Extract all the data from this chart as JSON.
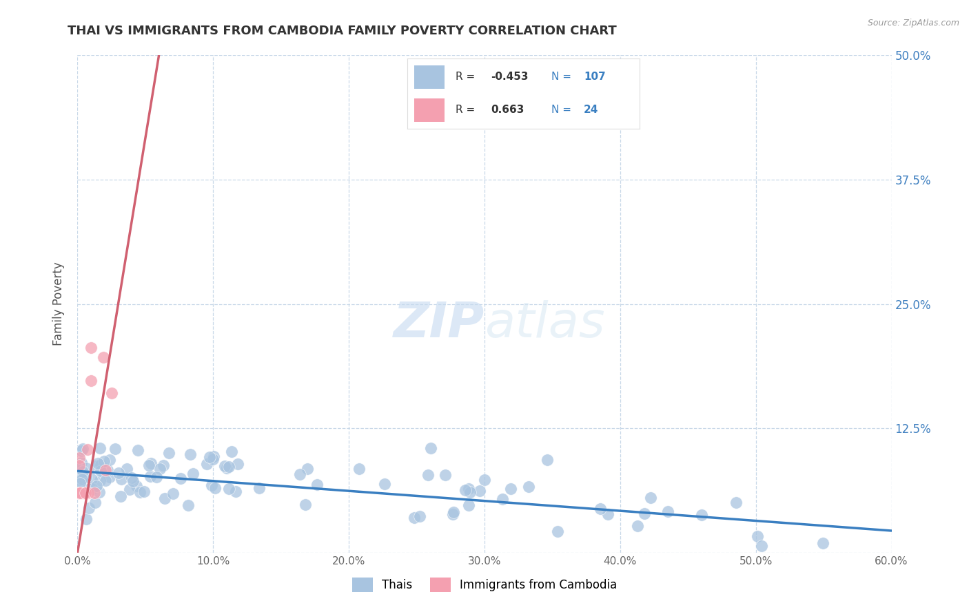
{
  "title": "THAI VS IMMIGRANTS FROM CAMBODIA FAMILY POVERTY CORRELATION CHART",
  "source_text": "Source: ZipAtlas.com",
  "ylabel": "Family Poverty",
  "legend_bottom": [
    "Thais",
    "Immigrants from Cambodia"
  ],
  "r_thai": -0.453,
  "n_thai": 107,
  "r_cambodia": 0.663,
  "n_cambodia": 24,
  "xlim": [
    0,
    0.6
  ],
  "ylim": [
    0,
    0.5
  ],
  "xticks": [
    0.0,
    0.1,
    0.2,
    0.3,
    0.4,
    0.5,
    0.6
  ],
  "xtick_labels": [
    "0.0%",
    "10.0%",
    "20.0%",
    "30.0%",
    "40.0%",
    "50.0%",
    "60.0%"
  ],
  "yticks_right": [
    0.0,
    0.125,
    0.25,
    0.375,
    0.5
  ],
  "ytick_labels_right": [
    "",
    "12.5%",
    "25.0%",
    "37.5%",
    "50.0%"
  ],
  "color_thai": "#a8c4e0",
  "color_cambodia": "#f4a0b0",
  "color_trend_thai": "#3a7fc1",
  "color_trend_cambodia": "#d06070",
  "background_color": "#ffffff",
  "grid_color": "#c8d8e8",
  "watermark_zip": "ZIP",
  "watermark_atlas": "atlas",
  "trend_thai_x0": 0.0,
  "trend_thai_y0": 0.082,
  "trend_thai_x1": 0.6,
  "trend_thai_y1": 0.022,
  "trend_cambodia_x0": 0.0,
  "trend_cambodia_y0": 0.0,
  "trend_cambodia_x1": 0.06,
  "trend_cambodia_y1": 0.5
}
